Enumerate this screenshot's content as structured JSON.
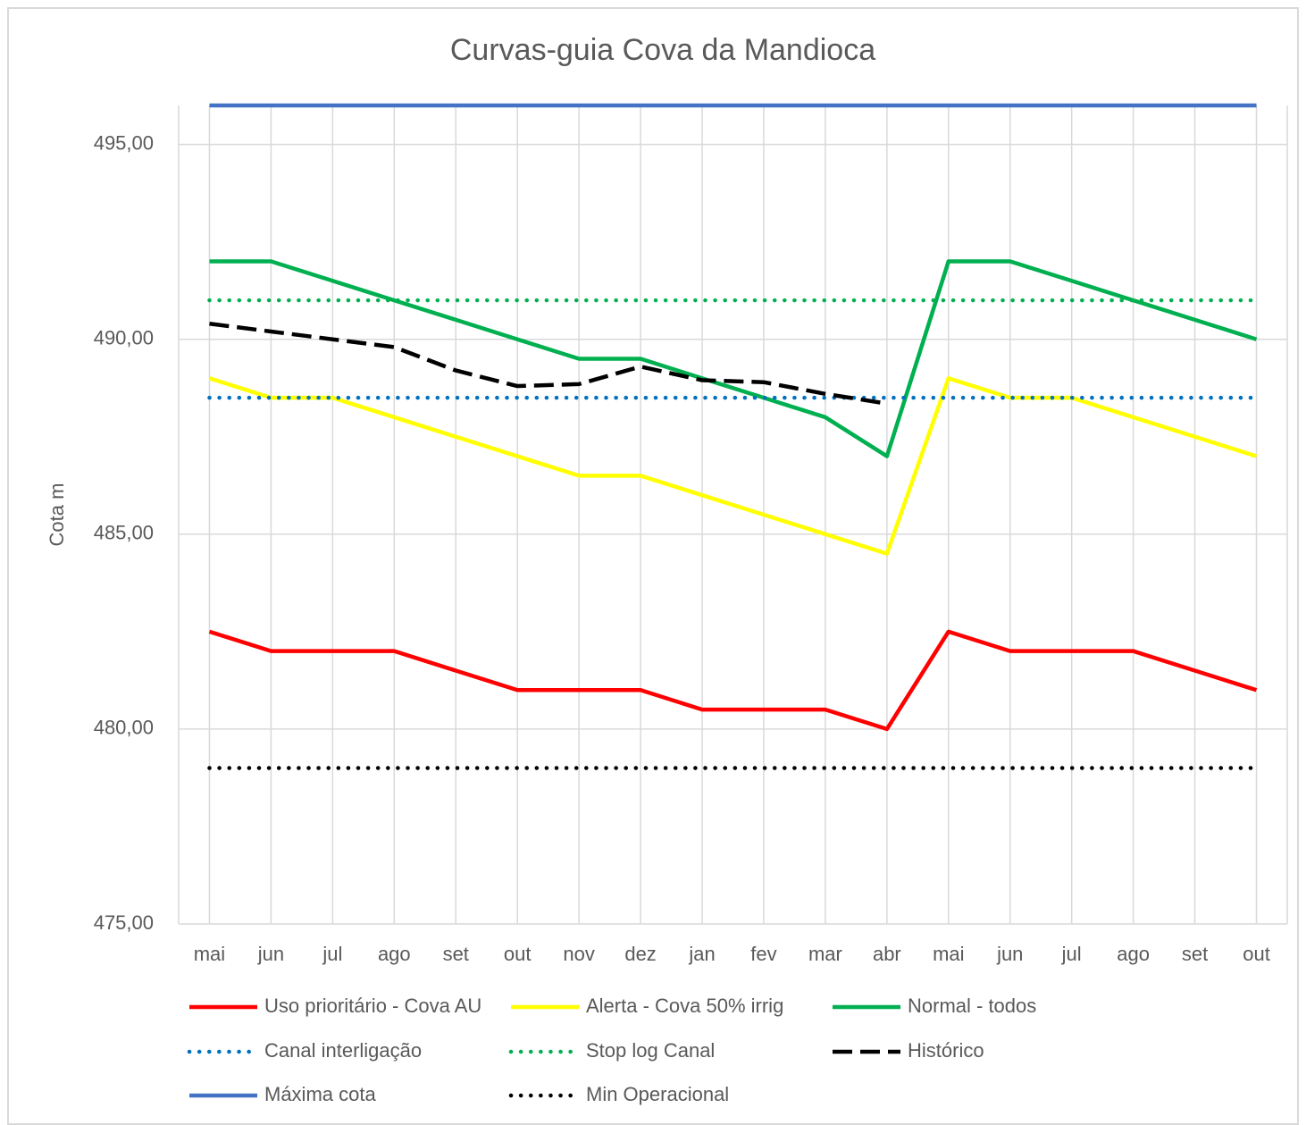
{
  "chart_data": {
    "type": "line",
    "title": "Curvas-guia Cova da Mandioca",
    "y_label": "Cota m",
    "categories": [
      "mai",
      "jun",
      "jul",
      "ago",
      "set",
      "out",
      "nov",
      "dez",
      "jan",
      "fev",
      "mar",
      "abr",
      "mai",
      "jun",
      "jul",
      "ago",
      "set",
      "out"
    ],
    "ylim": [
      475,
      496
    ],
    "yticks": [
      {
        "value": 475,
        "label": "475,00"
      },
      {
        "value": 480,
        "label": "480,00"
      },
      {
        "value": 485,
        "label": "485,00"
      },
      {
        "value": 490,
        "label": "490,00"
      },
      {
        "value": 495,
        "label": "495,00"
      }
    ],
    "grid": true,
    "legend": "bottom",
    "series": [
      {
        "name": "Uso prioritário - Cova AU",
        "color": "#ff0000",
        "dash": "solid",
        "values": [
          482.5,
          482,
          482,
          482,
          481.5,
          481,
          481,
          481,
          480.5,
          480.5,
          480.5,
          480,
          482.5,
          482,
          482,
          482,
          481.5,
          481
        ]
      },
      {
        "name": "Alerta - Cova 50% irrig",
        "color": "#ffff00",
        "dash": "solid",
        "values": [
          489,
          488.5,
          488.5,
          488,
          487.5,
          487,
          486.5,
          486.5,
          486,
          485.5,
          485,
          484.5,
          489,
          488.5,
          488.5,
          488,
          487.5,
          487
        ]
      },
      {
        "name": "Normal - todos",
        "color": "#00b050",
        "dash": "solid",
        "values": [
          492,
          492,
          491.5,
          491,
          490.5,
          490,
          489.5,
          489.5,
          489,
          488.5,
          488,
          487,
          492,
          492,
          491.5,
          491,
          490.5,
          490
        ]
      },
      {
        "name": "Canal interligação",
        "color": "#0070c0",
        "dash": "dotted",
        "values": [
          488.5,
          488.5,
          488.5,
          488.5,
          488.5,
          488.5,
          488.5,
          488.5,
          488.5,
          488.5,
          488.5,
          488.5,
          488.5,
          488.5,
          488.5,
          488.5,
          488.5,
          488.5
        ]
      },
      {
        "name": "Stop log Canal",
        "color": "#00b050",
        "dash": "dotted",
        "values": [
          491,
          491,
          491,
          491,
          491,
          491,
          491,
          491,
          491,
          491,
          491,
          491,
          491,
          491,
          491,
          491,
          491,
          491
        ]
      },
      {
        "name": "Histórico",
        "color": "#000000",
        "dash": "dashed",
        "values": [
          490.4,
          490.2,
          490.0,
          489.8,
          489.2,
          488.8,
          488.85,
          489.3,
          488.95,
          488.9,
          488.6,
          488.35,
          null,
          null,
          null,
          null,
          null,
          null
        ]
      },
      {
        "name": "Máxima cota",
        "color": "#4472c4",
        "dash": "solid",
        "values": [
          496,
          496,
          496,
          496,
          496,
          496,
          496,
          496,
          496,
          496,
          496,
          496,
          496,
          496,
          496,
          496,
          496,
          496
        ]
      },
      {
        "name": "Min Operacional",
        "color": "#000000",
        "dash": "dotted",
        "values": [
          479,
          479,
          479,
          479,
          479,
          479,
          479,
          479,
          479,
          479,
          479,
          479,
          479,
          479,
          479,
          479,
          479,
          479
        ]
      }
    ]
  }
}
